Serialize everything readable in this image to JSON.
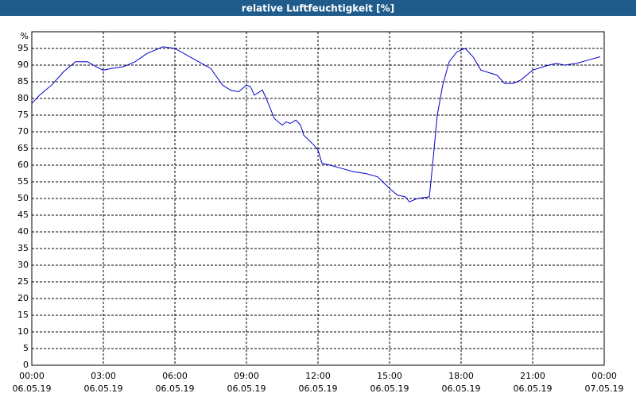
{
  "chart_data": {
    "type": "line",
    "title": "relative Luftfeuchtigkeit [%]",
    "y_unit": "%",
    "xlim": [
      0,
      24
    ],
    "xticks": [
      {
        "value": 0,
        "label": "00:00",
        "date": "06.05.19"
      },
      {
        "value": 3,
        "label": "03:00",
        "date": "06.05.19"
      },
      {
        "value": 6,
        "label": "06:00",
        "date": "06.05.19"
      },
      {
        "value": 9,
        "label": "09:00",
        "date": "06.05.19"
      },
      {
        "value": 12,
        "label": "12:00",
        "date": "06.05.19"
      },
      {
        "value": 15,
        "label": "15:00",
        "date": "06.05.19"
      },
      {
        "value": 18,
        "label": "18:00",
        "date": "06.05.19"
      },
      {
        "value": 21,
        "label": "21:00",
        "date": "06.05.19"
      },
      {
        "value": 24,
        "label": "00:00",
        "date": "07.05.19"
      }
    ],
    "ylim": [
      0,
      100
    ],
    "yticks": [
      0,
      5,
      10,
      15,
      20,
      25,
      30,
      35,
      40,
      45,
      50,
      55,
      60,
      65,
      70,
      75,
      80,
      85,
      90,
      95
    ],
    "grid": true,
    "x": [
      0,
      0.33,
      0.83,
      1.33,
      1.83,
      2.33,
      2.83,
      3,
      3.33,
      3.83,
      4.33,
      4.83,
      5.5,
      6,
      6.5,
      7,
      7.5,
      8,
      8.33,
      8.67,
      9,
      9.17,
      9.33,
      9.67,
      9.83,
      10.17,
      10.5,
      10.67,
      10.83,
      11.07,
      11.27,
      11.4,
      11.83,
      12,
      12.17,
      12.5,
      13,
      13.5,
      14,
      14.5,
      15,
      15.33,
      15.67,
      15.83,
      16.17,
      16.67,
      16.83,
      17,
      17.23,
      17.5,
      17.83,
      18.17,
      18.5,
      18.83,
      19.5,
      19.83,
      20.17,
      20.5,
      21,
      21.67,
      22,
      22.33,
      22.83,
      23.33,
      23.83
    ],
    "series": [
      {
        "name": "relative Luftfeuchtigkeit",
        "color": "#0000cc",
        "values": [
          78.5,
          81,
          84,
          88,
          91,
          91,
          89,
          88.5,
          89,
          89.5,
          91,
          93.5,
          95.5,
          95,
          93,
          91,
          89,
          84,
          82.5,
          82,
          84,
          83.5,
          81,
          82.5,
          80,
          74,
          72,
          73,
          72.5,
          73.5,
          72,
          69,
          66,
          64.5,
          60.5,
          60,
          59,
          58,
          57.5,
          56.5,
          53,
          51,
          50.5,
          49,
          50,
          50.5,
          62,
          75,
          84,
          91,
          94,
          95,
          92.5,
          88.5,
          87,
          84.5,
          84.5,
          85.5,
          88.5,
          90,
          90.5,
          90,
          90.5,
          91.5,
          92.5
        ]
      }
    ]
  }
}
